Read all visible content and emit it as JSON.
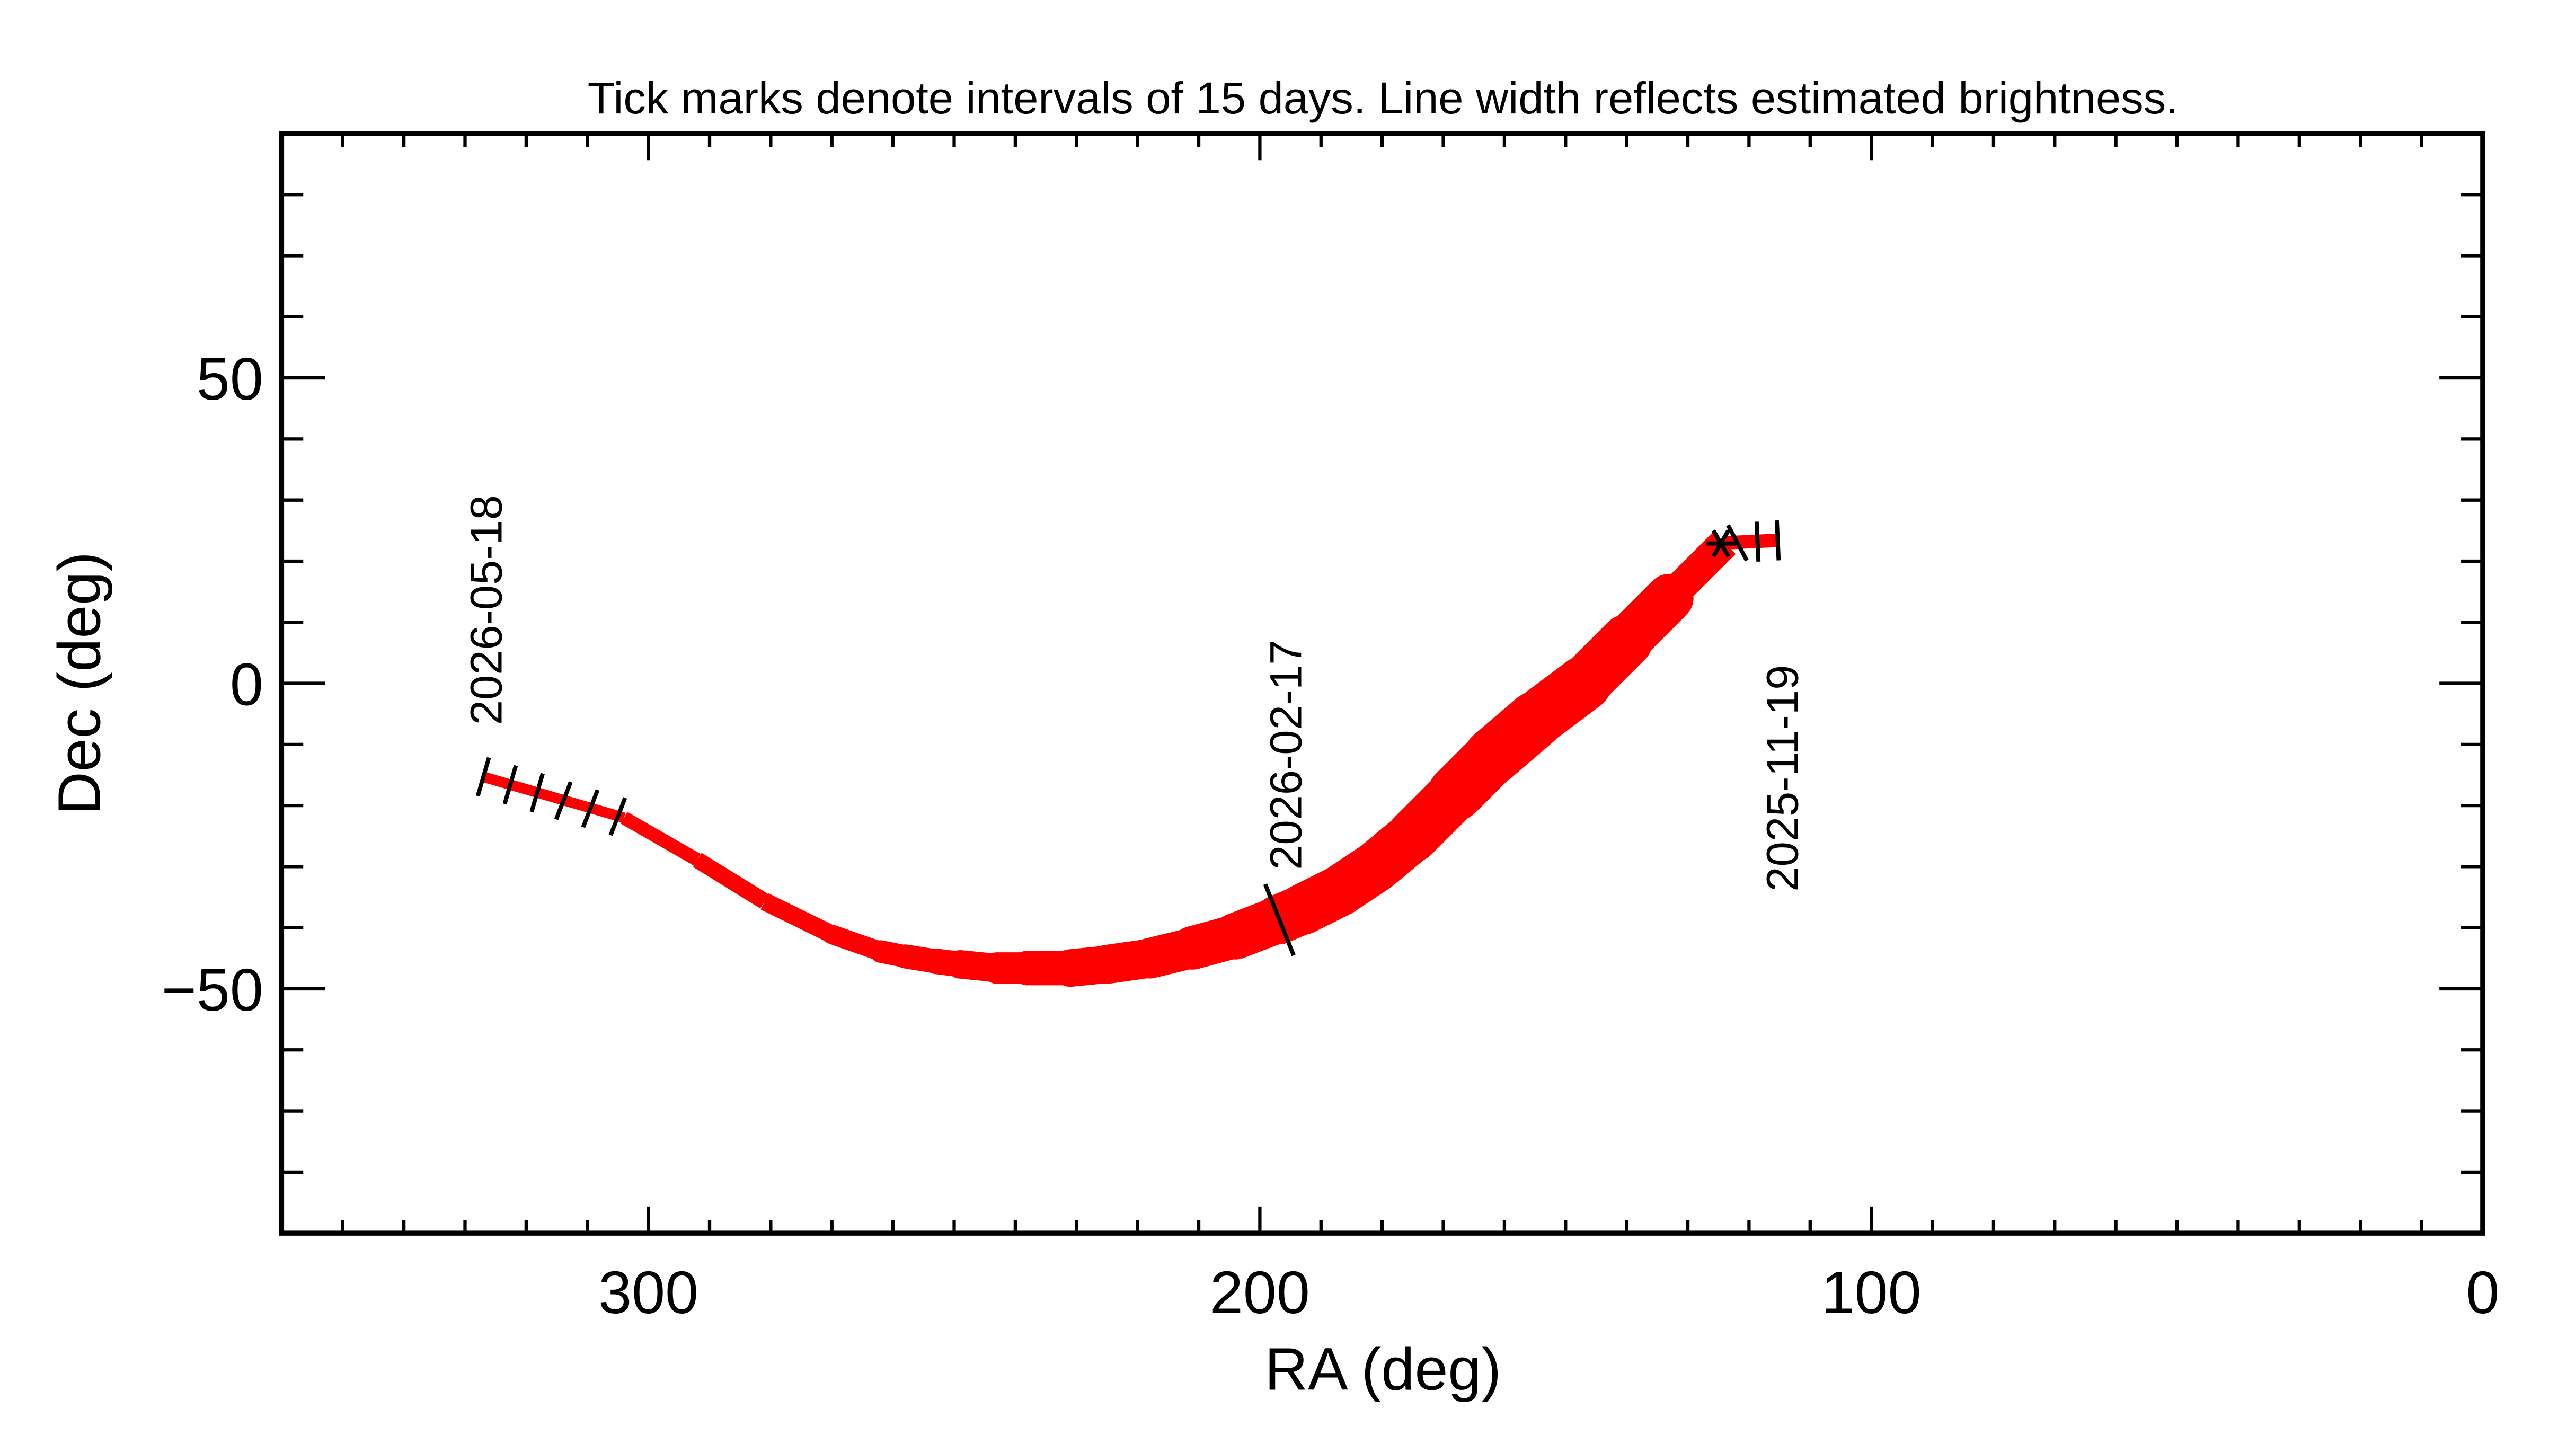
{
  "chart_data": {
    "type": "line",
    "title": "Tick marks denote intervals of 15 days.  Line width reflects estimated brightness.",
    "xlabel": "RA (deg)",
    "ylabel": "Dec (deg)",
    "xlim": [
      360,
      0
    ],
    "ylim": [
      -90,
      90
    ],
    "x_ticks": [
      300,
      200,
      100,
      0
    ],
    "x_tick_labels": [
      "300",
      "200",
      "100",
      "0"
    ],
    "y_ticks": [
      50,
      0,
      -50
    ],
    "y_tick_labels": [
      "50",
      "0",
      "−50"
    ],
    "grid": false,
    "line_color": "#ff0000",
    "track": [
      {
        "ra": 115.3,
        "dec": 23.4,
        "w": 0.15
      },
      {
        "ra": 124.0,
        "dec": 23.0,
        "w": 0.3
      },
      {
        "ra": 133.0,
        "dec": 14.0,
        "w": 0.75
      },
      {
        "ra": 140.0,
        "dec": 7.0,
        "w": 0.85
      },
      {
        "ra": 147.0,
        "dec": 0.0,
        "w": 0.9
      },
      {
        "ra": 155.0,
        "dec": -6.0,
        "w": 0.95
      },
      {
        "ra": 162.0,
        "dec": -12.0,
        "w": 0.95
      },
      {
        "ra": 168.0,
        "dec": -18.0,
        "w": 0.9
      },
      {
        "ra": 175.0,
        "dec": -25.0,
        "w": 0.85
      },
      {
        "ra": 181.0,
        "dec": -30.0,
        "w": 0.85
      },
      {
        "ra": 187.0,
        "dec": -34.0,
        "w": 0.85
      },
      {
        "ra": 193.0,
        "dec": -37.0,
        "w": 0.85
      },
      {
        "ra": 197.0,
        "dec": -38.7,
        "w": 0.8
      },
      {
        "ra": 204.0,
        "dec": -41.4,
        "w": 0.75
      },
      {
        "ra": 211.0,
        "dec": -43.3,
        "w": 0.7
      },
      {
        "ra": 218.0,
        "dec": -45.0,
        "w": 0.65
      },
      {
        "ra": 225.0,
        "dec": -46.0,
        "w": 0.65
      },
      {
        "ra": 231.0,
        "dec": -46.6,
        "w": 0.6
      },
      {
        "ra": 238.0,
        "dec": -46.6,
        "w": 0.55
      },
      {
        "ra": 243.0,
        "dec": -46.6,
        "w": 0.5
      },
      {
        "ra": 249.0,
        "dec": -46.0,
        "w": 0.45
      },
      {
        "ra": 253.0,
        "dec": -45.5,
        "w": 0.4
      },
      {
        "ra": 258.0,
        "dec": -44.7,
        "w": 0.4
      },
      {
        "ra": 262.0,
        "dec": -43.9,
        "w": 0.35
      },
      {
        "ra": 270.0,
        "dec": -41.1,
        "w": 0.3
      },
      {
        "ra": 281.0,
        "dec": -35.7,
        "w": 0.3
      },
      {
        "ra": 292.0,
        "dec": -28.9,
        "w": 0.25
      },
      {
        "ra": 304.0,
        "dec": -22.0,
        "w": 0.2
      },
      {
        "ra": 327.0,
        "dec": -15.3,
        "w": 0.15
      }
    ],
    "interval_ticks": [
      {
        "ra": 115.3,
        "dec": 23.4
      },
      {
        "ra": 118.6,
        "dec": 23.2
      },
      {
        "ra": 121.9,
        "dec": 23.0
      },
      {
        "ra": 196.8,
        "dec": -38.7,
        "long": true
      },
      {
        "ra": 305.0,
        "dec": -21.8
      },
      {
        "ra": 309.5,
        "dec": -20.5
      },
      {
        "ra": 313.9,
        "dec": -19.2
      },
      {
        "ra": 318.2,
        "dec": -17.9
      },
      {
        "ra": 322.6,
        "dec": -16.6
      },
      {
        "ra": 327.0,
        "dec": -15.3
      }
    ],
    "current_position_marker": {
      "ra": 124.6,
      "dec": 22.9,
      "symbol": "asterisk"
    },
    "date_labels": [
      {
        "text": "2026-05-18",
        "ra": 327.0,
        "dec": -15.3
      },
      {
        "text": "2026-02-17",
        "ra": 196.8,
        "dec": -38.7
      },
      {
        "text": "2025-11-19",
        "ra": 115.3,
        "dec": 23.4
      }
    ]
  }
}
